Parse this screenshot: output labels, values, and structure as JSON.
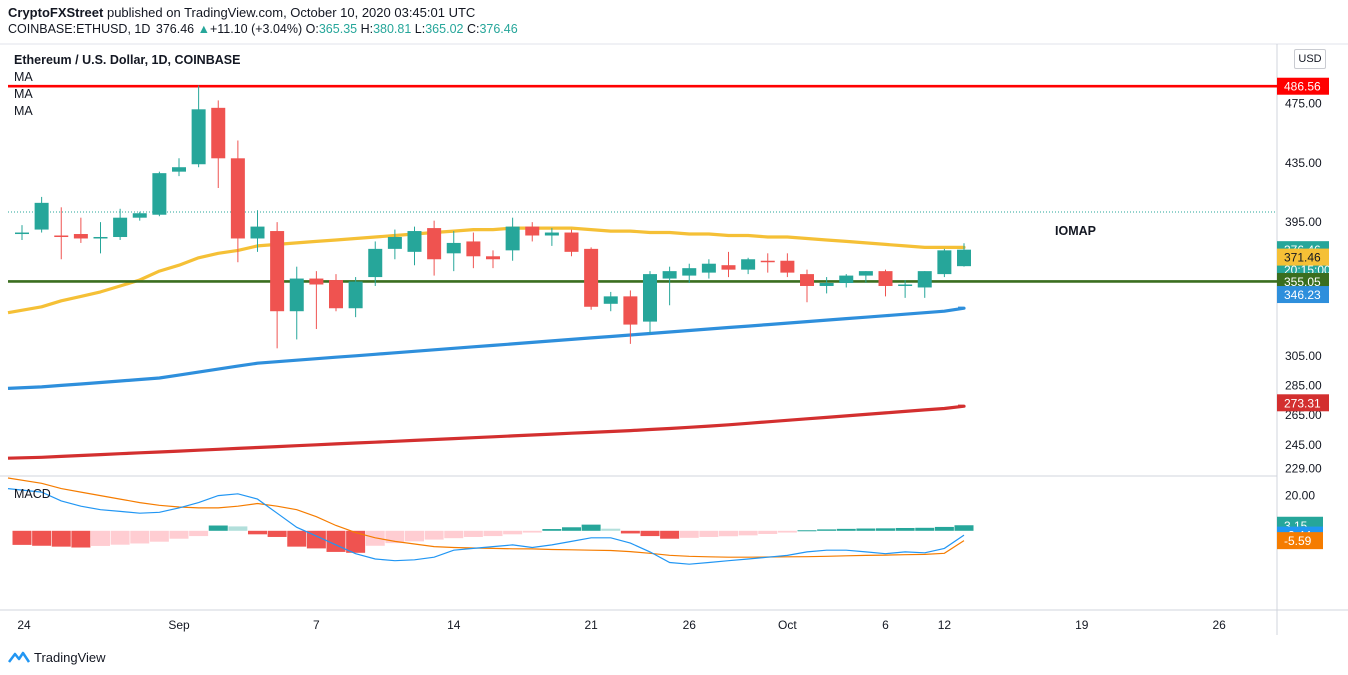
{
  "header": {
    "author": "CryptoFXStreet",
    "published": " published on TradingView.com, October 10, 2020 03:45:01 UTC",
    "symbol": "COINBASE:ETHUSD, 1D",
    "last": "376.46",
    "arrow": "▲",
    "change": "+11.10 (+3.04%)",
    "o_label": "O:",
    "o_value": "365.35",
    "h_label": "H:",
    "h_value": "380.81",
    "l_label": "L:",
    "l_value": "365.02",
    "c_label": "C:",
    "c_value": "376.46"
  },
  "chart_title": "Ethereum / U.S. Dollar, 1D, COINBASE",
  "ma_labels": [
    "MA",
    "MA",
    "MA"
  ],
  "macd_label": "MACD",
  "currency_button": "USD",
  "annotation": "IOMAP",
  "brand": "TradingView",
  "colors": {
    "up": "#26a69a",
    "down": "#ef5350",
    "ma_yellow": "#f5c036",
    "ma_blue": "#2e8fdc",
    "ma_red": "#d32f2f",
    "resistance": "#ff0000",
    "support": "#3a6e1f",
    "macd_line": "#2196f3",
    "signal_line": "#f57c00"
  },
  "chart_data": [
    {
      "type": "candlestick",
      "title": "Ethereum / U.S. Dollar, 1D, COINBASE",
      "currency": "USD",
      "x_tick_labels": [
        "24",
        "Sep",
        "7",
        "14",
        "21",
        "26",
        "Oct",
        "6",
        "12",
        "19",
        "26"
      ],
      "y_tick_labels": [
        "475.00",
        "435.00",
        "395.00",
        "305.00",
        "285.00",
        "265.00",
        "245.00",
        "229.00"
      ],
      "y_range": [
        224,
        515
      ],
      "candles": [
        {
          "o": 388,
          "h": 393,
          "l": 383,
          "c": 388
        },
        {
          "o": 390,
          "h": 412,
          "l": 388,
          "c": 408
        },
        {
          "o": 386,
          "h": 405,
          "l": 370,
          "c": 385
        },
        {
          "o": 387,
          "h": 398,
          "l": 381,
          "c": 384
        },
        {
          "o": 385,
          "h": 395,
          "l": 374,
          "c": 385
        },
        {
          "o": 385,
          "h": 404,
          "l": 383,
          "c": 398
        },
        {
          "o": 398,
          "h": 402,
          "l": 396,
          "c": 401
        },
        {
          "o": 400,
          "h": 429,
          "l": 399,
          "c": 428
        },
        {
          "o": 429,
          "h": 438,
          "l": 426,
          "c": 432
        },
        {
          "o": 434,
          "h": 487,
          "l": 432,
          "c": 471
        },
        {
          "o": 472,
          "h": 477,
          "l": 418,
          "c": 438
        },
        {
          "o": 438,
          "h": 450,
          "l": 368,
          "c": 384
        },
        {
          "o": 384,
          "h": 403,
          "l": 375,
          "c": 392
        },
        {
          "o": 389,
          "h": 395,
          "l": 310,
          "c": 335
        },
        {
          "o": 335,
          "h": 365,
          "l": 316,
          "c": 357
        },
        {
          "o": 357,
          "h": 362,
          "l": 323,
          "c": 353
        },
        {
          "o": 356,
          "h": 360,
          "l": 335,
          "c": 337
        },
        {
          "o": 337,
          "h": 358,
          "l": 331,
          "c": 355
        },
        {
          "o": 358,
          "h": 382,
          "l": 352,
          "c": 377
        },
        {
          "o": 377,
          "h": 390,
          "l": 370,
          "c": 385
        },
        {
          "o": 375,
          "h": 392,
          "l": 366,
          "c": 389
        },
        {
          "o": 391,
          "h": 396,
          "l": 359,
          "c": 370
        },
        {
          "o": 374,
          "h": 389,
          "l": 362,
          "c": 381
        },
        {
          "o": 382,
          "h": 388,
          "l": 364,
          "c": 372
        },
        {
          "o": 372,
          "h": 376,
          "l": 364,
          "c": 370
        },
        {
          "o": 376,
          "h": 398,
          "l": 369,
          "c": 392
        },
        {
          "o": 392,
          "h": 395,
          "l": 382,
          "c": 386
        },
        {
          "o": 386,
          "h": 391,
          "l": 379,
          "c": 388
        },
        {
          "o": 388,
          "h": 390,
          "l": 372,
          "c": 375
        },
        {
          "o": 377,
          "h": 378,
          "l": 336,
          "c": 338
        },
        {
          "o": 340,
          "h": 348,
          "l": 335,
          "c": 345
        },
        {
          "o": 345,
          "h": 349,
          "l": 313,
          "c": 326
        },
        {
          "o": 328,
          "h": 362,
          "l": 320,
          "c": 360
        },
        {
          "o": 357,
          "h": 365,
          "l": 339,
          "c": 362
        },
        {
          "o": 359,
          "h": 367,
          "l": 354,
          "c": 364
        },
        {
          "o": 361,
          "h": 370,
          "l": 357,
          "c": 367
        },
        {
          "o": 366,
          "h": 375,
          "l": 358,
          "c": 363
        },
        {
          "o": 363,
          "h": 371,
          "l": 360,
          "c": 370
        },
        {
          "o": 369,
          "h": 374,
          "l": 361,
          "c": 368
        },
        {
          "o": 369,
          "h": 374,
          "l": 358,
          "c": 361
        },
        {
          "o": 360,
          "h": 363,
          "l": 341,
          "c": 352
        },
        {
          "o": 352,
          "h": 358,
          "l": 347,
          "c": 354
        },
        {
          "o": 354,
          "h": 360,
          "l": 351,
          "c": 359
        },
        {
          "o": 359,
          "h": 362,
          "l": 354,
          "c": 362
        },
        {
          "o": 362,
          "h": 363,
          "l": 345,
          "c": 352
        },
        {
          "o": 352,
          "h": 356,
          "l": 344,
          "c": 353
        },
        {
          "o": 351,
          "h": 362,
          "l": 344,
          "c": 362
        },
        {
          "o": 360,
          "h": 377,
          "l": 358,
          "c": 376
        },
        {
          "o": 365.35,
          "h": 380.81,
          "l": 365.02,
          "c": 376.46
        }
      ],
      "moving_averages": [
        {
          "color_key": "ma_yellow",
          "values": [
            334,
            338,
            342,
            345,
            348,
            352,
            356,
            362,
            366,
            371,
            374,
            376,
            379,
            380,
            381,
            382,
            383,
            384,
            385,
            386,
            387,
            388,
            389,
            390,
            390,
            391,
            391,
            391,
            391,
            390,
            389,
            389,
            388,
            388,
            387,
            387,
            386,
            386,
            385,
            385,
            384,
            383,
            382,
            381,
            380,
            379,
            378,
            378,
            378
          ]
        },
        {
          "color_key": "ma_blue",
          "values": [
            283,
            284,
            285,
            286,
            287,
            288,
            289,
            290,
            292,
            294,
            296,
            298,
            300,
            301,
            302,
            303,
            304,
            305,
            306,
            307,
            308,
            309,
            310,
            311,
            312,
            313,
            314,
            315,
            316,
            317,
            318,
            319,
            320,
            321,
            322,
            323,
            324,
            325,
            326,
            327,
            328,
            329,
            330,
            331,
            332,
            333,
            334,
            335,
            337
          ]
        },
        {
          "color_key": "ma_red",
          "values": [
            236,
            236.6,
            237.2,
            237.8,
            238.4,
            239,
            239.6,
            240.2,
            240.8,
            241.4,
            242,
            242.6,
            243.2,
            243.8,
            244.4,
            245,
            245.6,
            246.2,
            246.8,
            247.4,
            248,
            248.6,
            249.2,
            249.8,
            250.4,
            251,
            251.6,
            252.2,
            252.8,
            253.4,
            254,
            254.6,
            255.3,
            256,
            256.8,
            257.6,
            258.5,
            259.5,
            260.5,
            261.5,
            262.5,
            263.5,
            264.5,
            265.5,
            266.5,
            267.5,
            268.5,
            269.5,
            271
          ]
        }
      ],
      "levels": [
        {
          "label": "486.56",
          "value": 486.56,
          "color_key": "resistance"
        },
        {
          "label": "355.05",
          "value": 355.05,
          "color_key": "support"
        }
      ],
      "price_tags": [
        {
          "label": "376.46",
          "value": 376.46,
          "bg": "#26a69a",
          "fg": "#ffffff"
        },
        {
          "label": "20:15:00",
          "value": 363.0,
          "bg": "#26a69a",
          "fg": "#ffffff"
        },
        {
          "label": "371.46",
          "value": 371.46,
          "bg": "#f5c036",
          "fg": "#131722"
        },
        {
          "label": "355.05",
          "value": 355.05,
          "bg": "#3a6e1f",
          "fg": "#ffffff"
        },
        {
          "label": "346.23",
          "value": 346.23,
          "bg": "#2e8fdc",
          "fg": "#ffffff"
        },
        {
          "label": "273.31",
          "value": 273.31,
          "bg": "#d32f2f",
          "fg": "#ffffff"
        },
        {
          "label": "486.56",
          "value": 486.56,
          "bg": "#ff0000",
          "fg": "#ffffff"
        }
      ]
    },
    {
      "type": "macd",
      "title": "MACD",
      "y_tick_labels": [
        "20.00"
      ],
      "y_range": [
        -45,
        30
      ],
      "histogram": [
        -8,
        -8.5,
        -9,
        -9.5,
        -8.6,
        -7.9,
        -7.2,
        -6.2,
        -4.5,
        -3,
        3,
        2.5,
        -2,
        -3.5,
        -9,
        -10,
        -12,
        -12.5,
        -8.5,
        -7,
        -6,
        -5,
        -4.2,
        -3.5,
        -3,
        -2,
        -1,
        1,
        2,
        3.5,
        1.2,
        -1.5,
        -3,
        -4.5,
        -4,
        -3.5,
        -3.1,
        -2.6,
        -1.8,
        -1,
        0.3,
        0.8,
        1.1,
        1.3,
        1.4,
        1.6,
        1.7,
        2.2,
        3.15
      ],
      "macd": [
        24,
        22,
        17,
        14,
        12,
        11,
        10,
        10.5,
        13,
        16,
        20,
        21,
        18,
        10,
        2,
        -3,
        -8,
        -13,
        -16,
        -17,
        -16.5,
        -15,
        -11,
        -10,
        -9,
        -8,
        -9.5,
        -8,
        -6,
        -4,
        -4,
        -7,
        -12,
        -18,
        -19,
        -18,
        -17,
        -16,
        -15,
        -14,
        -12,
        -11,
        -11,
        -12,
        -13,
        -12,
        -12.5,
        -10,
        -2.44
      ],
      "signal": [
        30,
        27,
        24,
        22,
        20,
        18,
        16,
        14.5,
        13.5,
        13,
        13,
        14,
        15.5,
        14,
        12,
        8,
        3,
        -1,
        -4,
        -6,
        -7.5,
        -9,
        -9.5,
        -9.8,
        -10,
        -10.2,
        -10.3,
        -10.6,
        -10.8,
        -11,
        -11.2,
        -11.8,
        -12.8,
        -13.9,
        -14.5,
        -14.8,
        -15,
        -15,
        -14.9,
        -14.8,
        -14.7,
        -14.5,
        -14.2,
        -14,
        -13.8,
        -13.6,
        -13.4,
        -12.8,
        -5.59
      ],
      "value_tags": [
        {
          "label": "3.15",
          "series": "histogram",
          "bg": "#26a69a",
          "fg": "#ffffff"
        },
        {
          "label": "-2.44",
          "series": "macd",
          "bg": "#2196f3",
          "fg": "#ffffff"
        },
        {
          "label": "-5.59",
          "series": "signal",
          "bg": "#f57c00",
          "fg": "#ffffff"
        }
      ]
    }
  ]
}
